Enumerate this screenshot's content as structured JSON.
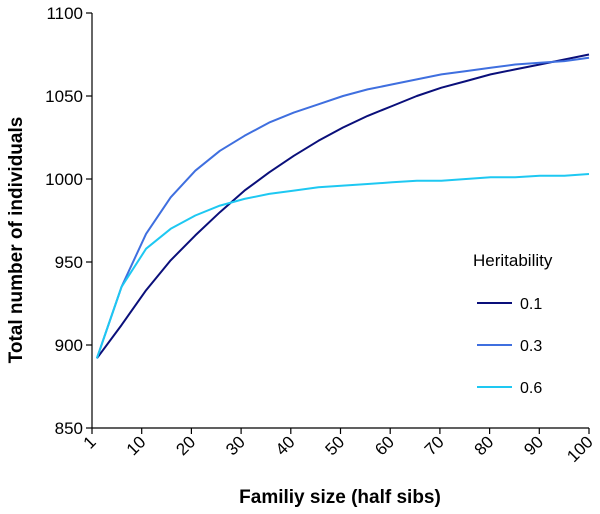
{
  "chart_data": {
    "type": "line",
    "title": "",
    "xlabel": "Familiy size (half sibs)",
    "ylabel": "Total number of individuals",
    "x_tick_labels": [
      "1",
      "10",
      "20",
      "30",
      "40",
      "50",
      "60",
      "70",
      "80",
      "90",
      "100"
    ],
    "x": [
      2,
      7,
      12,
      17,
      22,
      27,
      32,
      37,
      42,
      47,
      52,
      57,
      62,
      67,
      72,
      77,
      82,
      87,
      92,
      97,
      102
    ],
    "xlim": [
      1,
      102
    ],
    "ylim": [
      850,
      1100
    ],
    "y_ticks": [
      850,
      900,
      950,
      1000,
      1050,
      1100
    ],
    "grid": false,
    "legend_title": "Heritability",
    "legend_position": "right",
    "series": [
      {
        "name": "0.1",
        "color": "#0a0f7a",
        "values": [
          892,
          912,
          933,
          951,
          966,
          980,
          993,
          1004,
          1014,
          1023,
          1031,
          1038,
          1044,
          1050,
          1055,
          1059,
          1063,
          1066,
          1069,
          1072,
          1075
        ]
      },
      {
        "name": "0.3",
        "color": "#3f6fdf",
        "values": [
          892,
          935,
          967,
          989,
          1005,
          1017,
          1026,
          1034,
          1040,
          1045,
          1050,
          1054,
          1057,
          1060,
          1063,
          1065,
          1067,
          1069,
          1070,
          1071,
          1073
        ]
      },
      {
        "name": "0.6",
        "color": "#1ec8f2",
        "values": [
          892,
          935,
          958,
          970,
          978,
          984,
          988,
          991,
          993,
          995,
          996,
          997,
          998,
          999,
          999,
          1000,
          1001,
          1001,
          1002,
          1002,
          1003
        ]
      }
    ]
  }
}
